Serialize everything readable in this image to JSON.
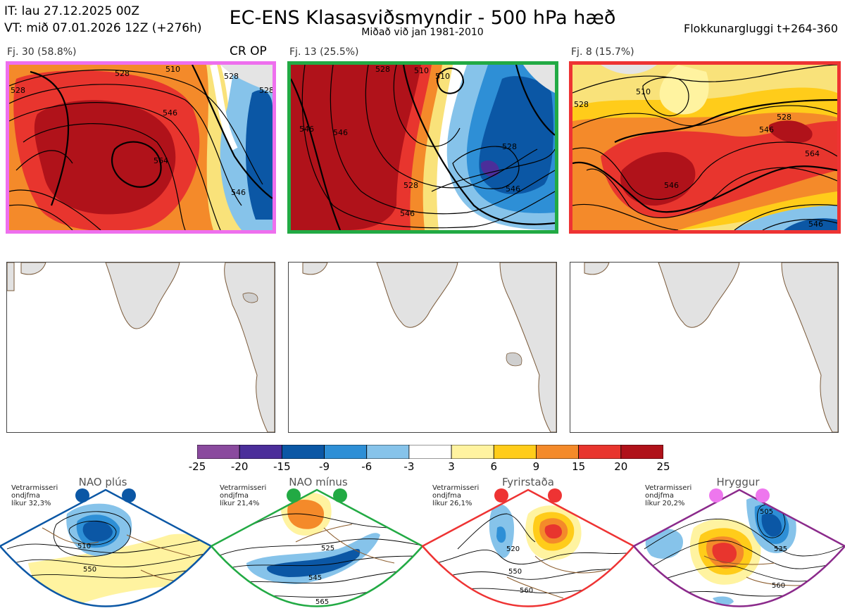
{
  "header": {
    "it_line": "IT: lau 27.12.2025 00Z",
    "vt_line": "VT: mið 07.01.2026 12Z  (+276h)",
    "title": "EC-ENS Klasasviðsmyndir - 500 hPa hæð",
    "subtitle": "Miðað við jan 1981-2010",
    "window": "Flokkunargluggi t+264-360"
  },
  "clusters": [
    {
      "label": "Fj. 30 (58.8%)",
      "tags": "CR OP",
      "border_color": "#ee6fee",
      "contour_labels": [
        "528",
        "510",
        "546",
        "564",
        "528",
        "546",
        "528",
        "528"
      ]
    },
    {
      "label": "Fj. 13 (25.5%)",
      "tags": "",
      "border_color": "#22aa44",
      "contour_labels": [
        "546",
        "546",
        "528",
        "510",
        "528",
        "546",
        "546",
        "528",
        "510"
      ]
    },
    {
      "label": "Fj. 8 (15.7%)",
      "tags": "",
      "border_color": "#ee3333",
      "contour_labels": [
        "528",
        "510",
        "528",
        "546",
        "546",
        "564",
        "546"
      ]
    }
  ],
  "colorbar": {
    "ticks": [
      "-25",
      "-20",
      "-15",
      "-9",
      "-6",
      "-3",
      "3",
      "6",
      "9",
      "15",
      "20",
      "25"
    ],
    "colors": [
      "#8a4a9e",
      "#4b2e9a",
      "#0b57a5",
      "#2e8fd6",
      "#86c3ea",
      "#ffffff",
      "#fff3a0",
      "#ffcc1a",
      "#f48a2a",
      "#e8352e",
      "#b0121a"
    ]
  },
  "regimes": [
    {
      "title": "NAO plús",
      "note_l1": "Vetrarmisseri",
      "note_l2": "ondjfma",
      "note_l3": "líkur 32,3%",
      "color": "#0b57a5",
      "contour_labels": [
        "510",
        "550"
      ]
    },
    {
      "title": "NAO mínus",
      "note_l1": "Vetrarmisseri",
      "note_l2": "ondjfma",
      "note_l3": "líkur 21,4%",
      "color": "#22aa44",
      "contour_labels": [
        "525",
        "545",
        "565"
      ]
    },
    {
      "title": "Fyrirstaða",
      "note_l1": "Vetrarmisseri",
      "note_l2": "ondjfma",
      "note_l3": "líkur 26,1%",
      "color": "#ee3333",
      "contour_labels": [
        "520",
        "550",
        "560"
      ]
    },
    {
      "title": "Hryggur",
      "note_l1": "Vetrarmisseri",
      "note_l2": "ondjfma",
      "note_l3": "líkur 20,2%",
      "color": "#8b2a8b",
      "contour_labels": [
        "505",
        "535",
        "560"
      ]
    }
  ]
}
